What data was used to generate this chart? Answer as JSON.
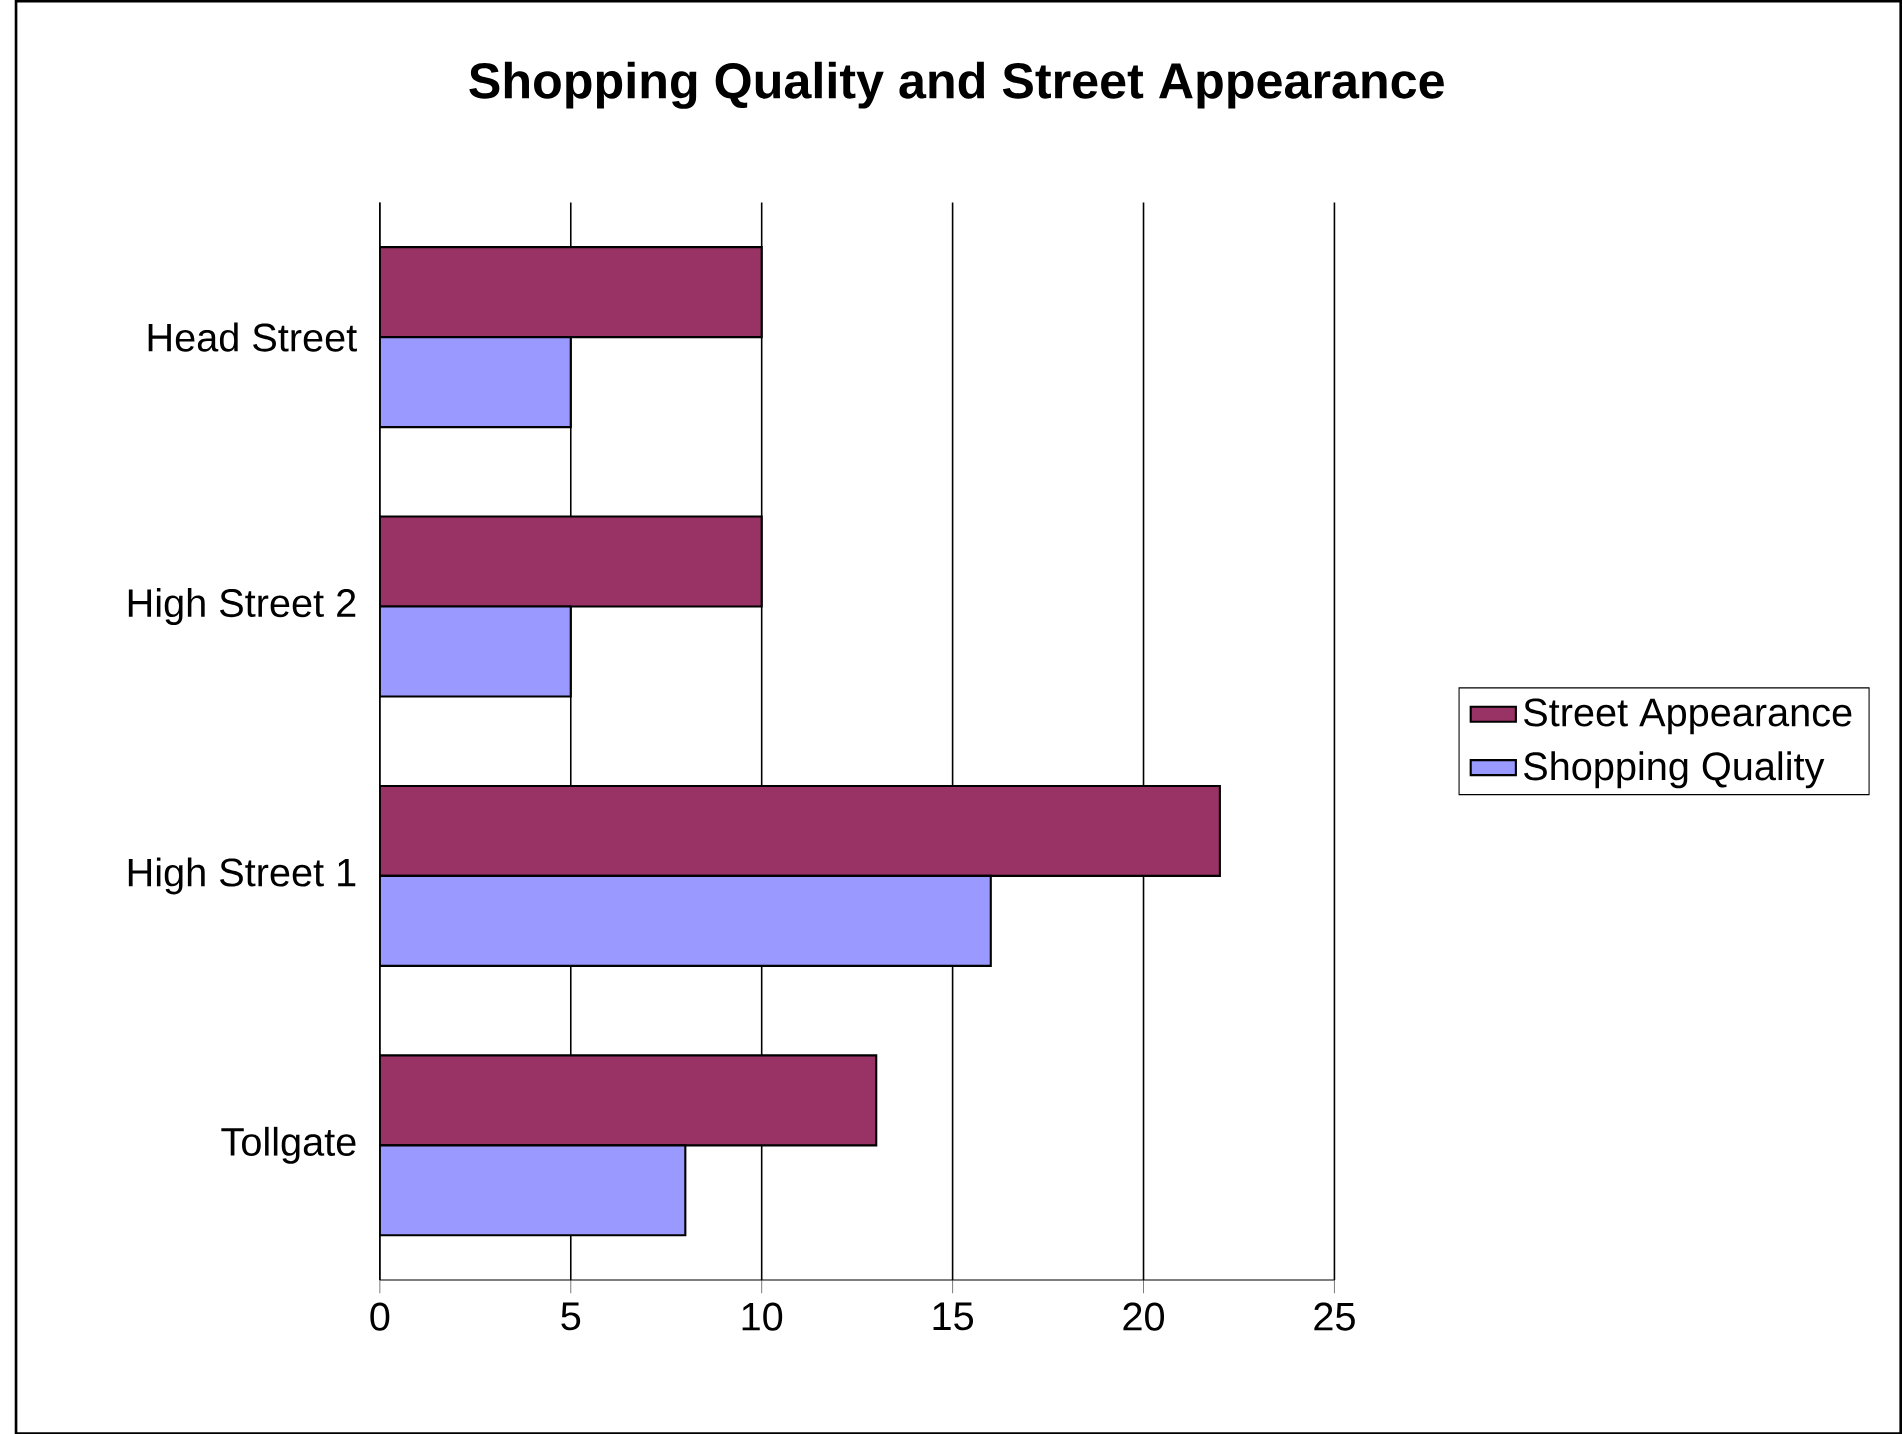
{
  "chart_data": {
    "type": "bar",
    "orientation": "horizontal",
    "title": "Shopping Quality and Street Appearance",
    "categories": [
      "Head Street",
      "High Street 2",
      "High Street 1",
      "Tollgate"
    ],
    "series": [
      {
        "name": "Street Appearance",
        "color": "#993366",
        "values": [
          10,
          10,
          22,
          13
        ]
      },
      {
        "name": "Shopping Quality",
        "color": "#9999ff",
        "values": [
          5,
          5,
          16,
          8
        ]
      }
    ],
    "xlim": [
      0,
      25
    ],
    "xticks": [
      0,
      5,
      10,
      15,
      20,
      25
    ],
    "grid": "x",
    "legend": "right"
  }
}
